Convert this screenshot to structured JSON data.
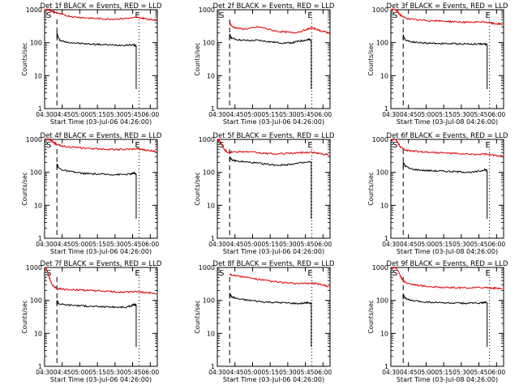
{
  "chart_data": [
    {
      "type": "line",
      "title": "Det 1f BLACK = Events, RED = LLD",
      "xlabel": "Start Time (03-Jul-06 04:26:00)",
      "ylabel": "Counts/sec",
      "x_ticks": [
        "04:30",
        "04:45",
        "05:00",
        "05:15",
        "05:30",
        "05:45",
        "06:00"
      ],
      "x_tick_minutes": [
        4,
        19,
        34,
        49,
        64,
        79,
        94
      ],
      "xlim_minutes": [
        4,
        100
      ],
      "y_ticks": [
        "1",
        "10",
        "100",
        "1000"
      ],
      "ylim": [
        1,
        1000
      ],
      "ylog": true,
      "markers": {
        "S": "S",
        "E": "E"
      },
      "dashed_line_minute": 14.5,
      "dotted_line_minute": 84.5,
      "series": [
        {
          "color": "#000000",
          "x": [
            14.5,
            16,
            18,
            22,
            28,
            34,
            40,
            46,
            52,
            58,
            64,
            70,
            76,
            80,
            82
          ],
          "y": [
            200,
            130,
            115,
            105,
            100,
            95,
            92,
            90,
            88,
            86,
            85,
            84,
            86,
            84,
            80
          ]
        },
        {
          "color": "#e00000",
          "x": [
            4,
            8,
            10,
            12,
            14.5,
            18,
            24,
            30,
            36,
            42,
            48,
            54,
            60,
            66,
            72,
            78,
            84,
            88,
            92,
            96,
            99
          ],
          "y": [
            1000,
            1000,
            900,
            850,
            800,
            720,
            650,
            600,
            580,
            560,
            540,
            530,
            520,
            530,
            540,
            560,
            580,
            550,
            520,
            500,
            480
          ]
        }
      ]
    },
    {
      "type": "line",
      "title": "Det 2f BLACK = Events, RED = LLD",
      "xlabel": "Start Time (03-Jul-06 04:26:00)",
      "ylabel": "Counts/sec",
      "x_ticks": [
        "04:30",
        "04:45",
        "05:00",
        "05:15",
        "05:30",
        "05:45",
        "06:00"
      ],
      "x_tick_minutes": [
        4,
        19,
        34,
        49,
        64,
        79,
        94
      ],
      "xlim_minutes": [
        4,
        100
      ],
      "y_ticks": [
        "1",
        "10",
        "100",
        "1000"
      ],
      "ylim": [
        1,
        1000
      ],
      "ylog": true,
      "markers": {
        "S": "S",
        "E": "E"
      },
      "dashed_line_minute": 14.5,
      "dotted_line_minute": 84.5,
      "series": [
        {
          "color": "#000000",
          "x": [
            14.5,
            16,
            20,
            26,
            32,
            38,
            44,
            50,
            56,
            62,
            68,
            72,
            76,
            80,
            82,
            84
          ],
          "y": [
            180,
            140,
            125,
            118,
            115,
            118,
            112,
            105,
            100,
            98,
            100,
            108,
            115,
            120,
            125,
            120
          ]
        },
        {
          "color": "#e00000",
          "x": [
            14.5,
            16,
            20,
            26,
            32,
            38,
            44,
            50,
            56,
            62,
            68,
            74,
            80,
            84,
            88,
            92,
            96,
            99
          ],
          "y": [
            400,
            320,
            280,
            260,
            270,
            300,
            280,
            240,
            220,
            210,
            200,
            215,
            250,
            280,
            260,
            230,
            210,
            200
          ]
        }
      ]
    },
    {
      "type": "line",
      "title": "Det 3f BLACK = Events, RED = LLD",
      "xlabel": "Start Time (03-Jul-08 04:26:00)",
      "ylabel": "Counts/sec",
      "x_ticks": [
        "04:30",
        "04:45",
        "05:00",
        "05:15",
        "05:30",
        "05:45",
        "06:00"
      ],
      "x_tick_minutes": [
        4,
        19,
        34,
        49,
        64,
        79,
        94
      ],
      "xlim_minutes": [
        4,
        100
      ],
      "y_ticks": [
        "1",
        "10",
        "100",
        "1000"
      ],
      "ylim": [
        1,
        1000
      ],
      "ylog": true,
      "markers": {
        "S": "S",
        "E": "E"
      },
      "dashed_line_minute": 14.5,
      "dotted_line_minute": 88,
      "series": [
        {
          "color": "#000000",
          "x": [
            14.5,
            16,
            20,
            26,
            32,
            38,
            44,
            50,
            56,
            62,
            68,
            74,
            80,
            84,
            86
          ],
          "y": [
            170,
            125,
            110,
            102,
            98,
            96,
            95,
            94,
            93,
            92,
            92,
            91,
            92,
            90,
            88
          ]
        },
        {
          "color": "#e00000",
          "x": [
            4,
            8,
            10,
            12,
            14.5,
            18,
            24,
            30,
            36,
            42,
            48,
            54,
            60,
            66,
            72,
            78,
            84,
            88,
            92,
            96,
            99
          ],
          "y": [
            1000,
            1000,
            850,
            700,
            600,
            540,
            500,
            480,
            470,
            460,
            450,
            440,
            430,
            420,
            410,
            420,
            430,
            400,
            380,
            370,
            360
          ]
        }
      ]
    },
    {
      "type": "line",
      "title": "Det 4f BLACK = Events, RED = LLD",
      "xlabel": "Start Time (03-Jul-06 04:26:00)",
      "ylabel": "Counts/sec",
      "x_ticks": [
        "04:30",
        "04:45",
        "05:00",
        "05:15",
        "05:30",
        "05:45",
        "06:00"
      ],
      "x_tick_minutes": [
        4,
        19,
        34,
        49,
        64,
        79,
        94
      ],
      "xlim_minutes": [
        4,
        100
      ],
      "y_ticks": [
        "1",
        "10",
        "100",
        "1000"
      ],
      "ylim": [
        1,
        1000
      ],
      "ylog": true,
      "markers": {
        "S": "S",
        "E": "E"
      },
      "dashed_line_minute": 14.5,
      "dotted_line_minute": 84.5,
      "series": [
        {
          "color": "#000000",
          "x": [
            14.5,
            16,
            20,
            26,
            32,
            38,
            44,
            50,
            56,
            62,
            68,
            74,
            78,
            80,
            82
          ],
          "y": [
            180,
            135,
            115,
            105,
            98,
            92,
            90,
            88,
            87,
            86,
            86,
            87,
            90,
            95,
            88
          ]
        },
        {
          "color": "#e00000",
          "x": [
            4,
            8,
            10,
            12,
            14.5,
            18,
            24,
            30,
            36,
            42,
            48,
            54,
            60,
            66,
            72,
            78,
            84,
            88,
            92,
            96,
            99
          ],
          "y": [
            1000,
            1000,
            900,
            800,
            700,
            640,
            600,
            570,
            550,
            530,
            520,
            510,
            500,
            495,
            490,
            500,
            520,
            480,
            460,
            450,
            440
          ]
        }
      ]
    },
    {
      "type": "line",
      "title": "Det 5f BLACK = Events, RED = LLD",
      "xlabel": "Start Time (03-Jul-06 04:26:00)",
      "ylabel": "Counts/sec",
      "x_ticks": [
        "04:30",
        "04:45",
        "05:00",
        "05:15",
        "05:30",
        "05:45",
        "06:00"
      ],
      "x_tick_minutes": [
        4,
        19,
        34,
        49,
        64,
        79,
        94
      ],
      "xlim_minutes": [
        4,
        100
      ],
      "y_ticks": [
        "1",
        "10",
        "100",
        "1000"
      ],
      "ylim": [
        1,
        1000
      ],
      "ylog": true,
      "markers": {
        "S": "S",
        "E": "E"
      },
      "dashed_line_minute": 14.5,
      "dotted_line_minute": 84.5,
      "series": [
        {
          "color": "#000000",
          "x": [
            14.5,
            16,
            20,
            26,
            32,
            38,
            44,
            50,
            56,
            62,
            68,
            74,
            80,
            84
          ],
          "y": [
            300,
            240,
            220,
            210,
            200,
            190,
            180,
            170,
            165,
            170,
            180,
            190,
            200,
            210
          ]
        },
        {
          "color": "#e00000",
          "x": [
            4,
            6,
            8,
            10,
            12,
            14.5,
            18,
            24,
            30,
            36,
            42,
            48,
            54,
            60,
            66,
            72,
            78,
            84,
            88,
            92,
            96,
            99
          ],
          "y": [
            1000,
            900,
            700,
            500,
            420,
            400,
            420,
            430,
            420,
            400,
            380,
            370,
            360,
            370,
            380,
            390,
            400,
            410,
            390,
            370,
            350,
            340
          ]
        }
      ]
    },
    {
      "type": "line",
      "title": "Det 6f BLACK = Events, RED = LLD",
      "xlabel": "Start Time (03-Jul-08 04:26:00)",
      "ylabel": "Counts/sec",
      "x_ticks": [
        "04:30",
        "04:45",
        "05:00",
        "05:15",
        "05:30",
        "05:45",
        "06:00"
      ],
      "x_tick_minutes": [
        4,
        19,
        34,
        49,
        64,
        79,
        94
      ],
      "xlim_minutes": [
        4,
        100
      ],
      "y_ticks": [
        "1",
        "10",
        "100",
        "1000"
      ],
      "ylim": [
        1,
        1000
      ],
      "ylog": true,
      "markers": {
        "S": "S",
        "E": "E"
      },
      "dashed_line_minute": 14.5,
      "dotted_line_minute": 88,
      "series": [
        {
          "color": "#000000",
          "x": [
            14.5,
            16,
            20,
            26,
            32,
            38,
            44,
            50,
            56,
            62,
            68,
            74,
            80,
            84,
            86
          ],
          "y": [
            200,
            160,
            130,
            120,
            115,
            112,
            110,
            108,
            106,
            104,
            102,
            100,
            110,
            120,
            115
          ]
        },
        {
          "color": "#e00000",
          "x": [
            4,
            8,
            10,
            12,
            14.5,
            18,
            24,
            30,
            36,
            42,
            48,
            54,
            60,
            66,
            72,
            78,
            84,
            88,
            92,
            96,
            99
          ],
          "y": [
            1000,
            1000,
            800,
            600,
            500,
            460,
            440,
            420,
            410,
            400,
            390,
            380,
            370,
            360,
            350,
            350,
            360,
            340,
            330,
            320,
            310
          ]
        }
      ]
    },
    {
      "type": "line",
      "title": "Det 7f BLACK = Events, RED = LLD",
      "xlabel": "Start Time (03-Jul-06 04:26:00)",
      "ylabel": "Counts/sec",
      "x_ticks": [
        "04:30",
        "04:45",
        "05:00",
        "05:15",
        "05:30",
        "05:45",
        "06:00"
      ],
      "x_tick_minutes": [
        4,
        19,
        34,
        49,
        64,
        79,
        94
      ],
      "xlim_minutes": [
        4,
        100
      ],
      "y_ticks": [
        "1",
        "10",
        "100",
        "1000"
      ],
      "ylim": [
        1,
        1000
      ],
      "ylog": true,
      "markers": {
        "S": "S",
        "E": "E"
      },
      "dashed_line_minute": 14.5,
      "dotted_line_minute": 84.5,
      "series": [
        {
          "color": "#000000",
          "x": [
            14.5,
            16,
            20,
            26,
            32,
            38,
            44,
            50,
            56,
            62,
            68,
            74,
            78,
            80,
            82
          ],
          "y": [
            100,
            80,
            75,
            72,
            70,
            68,
            66,
            65,
            64,
            63,
            62,
            62,
            70,
            75,
            72
          ]
        },
        {
          "color": "#e00000",
          "x": [
            4,
            6,
            8,
            10,
            12,
            14.5,
            18,
            24,
            30,
            36,
            42,
            48,
            54,
            60,
            66,
            72,
            78,
            84,
            88,
            92,
            96,
            99
          ],
          "y": [
            1000,
            800,
            500,
            320,
            260,
            230,
            220,
            215,
            210,
            205,
            200,
            195,
            190,
            185,
            180,
            178,
            180,
            185,
            175,
            170,
            165,
            160
          ]
        }
      ]
    },
    {
      "type": "line",
      "title": "Det 8f BLACK = Events, RED = LLD",
      "xlabel": "Start Time (03-Jul-06 04:26:00)",
      "ylabel": "Counts/sec",
      "x_ticks": [
        "04:30",
        "04:45",
        "05:00",
        "05:15",
        "05:30",
        "05:45",
        "06:00"
      ],
      "x_tick_minutes": [
        4,
        19,
        34,
        49,
        64,
        79,
        94
      ],
      "xlim_minutes": [
        4,
        100
      ],
      "y_ticks": [
        "1",
        "10",
        "100",
        "1000"
      ],
      "ylim": [
        1,
        1000
      ],
      "ylog": true,
      "markers": {
        "S": "S",
        "E": "E"
      },
      "dashed_line_minute": 14.5,
      "dotted_line_minute": 84.5,
      "series": [
        {
          "color": "#000000",
          "x": [
            14.5,
            16,
            20,
            26,
            32,
            38,
            44,
            50,
            56,
            62,
            68,
            74,
            80,
            84
          ],
          "y": [
            160,
            130,
            115,
            105,
            100,
            95,
            90,
            88,
            86,
            84,
            82,
            80,
            85,
            82
          ]
        },
        {
          "color": "#e00000",
          "x": [
            14.5,
            16,
            20,
            26,
            32,
            38,
            44,
            50,
            56,
            62,
            68,
            74,
            80,
            84,
            88,
            92,
            96,
            99
          ],
          "y": [
            650,
            600,
            560,
            520,
            480,
            440,
            410,
            380,
            360,
            340,
            330,
            320,
            330,
            340,
            320,
            300,
            280,
            260
          ]
        }
      ]
    },
    {
      "type": "line",
      "title": "Det 9f BLACK = Events, RED = LLD",
      "xlabel": "Start Time (03-Jul-08 04:26:00)",
      "ylabel": "Counts/sec",
      "x_ticks": [
        "04:30",
        "04:45",
        "05:00",
        "05:15",
        "05:30",
        "05:45",
        "06:00"
      ],
      "x_tick_minutes": [
        4,
        19,
        34,
        49,
        64,
        79,
        94
      ],
      "xlim_minutes": [
        4,
        100
      ],
      "y_ticks": [
        "1",
        "10",
        "100",
        "1000"
      ],
      "ylim": [
        1,
        1000
      ],
      "ylog": true,
      "markers": {
        "S": "S",
        "E": "E"
      },
      "dashed_line_minute": 14.5,
      "dotted_line_minute": 88,
      "series": [
        {
          "color": "#000000",
          "x": [
            14.5,
            16,
            20,
            26,
            32,
            38,
            44,
            50,
            56,
            62,
            68,
            74,
            80,
            84,
            86
          ],
          "y": [
            150,
            120,
            100,
            95,
            90,
            88,
            86,
            84,
            83,
            82,
            82,
            82,
            84,
            86,
            84
          ]
        },
        {
          "color": "#e00000",
          "x": [
            4,
            8,
            10,
            12,
            14.5,
            18,
            24,
            30,
            36,
            42,
            48,
            54,
            60,
            66,
            72,
            78,
            84,
            88,
            92,
            96,
            99
          ],
          "y": [
            1000,
            1000,
            800,
            550,
            400,
            330,
            300,
            280,
            265,
            255,
            250,
            245,
            240,
            240,
            240,
            245,
            250,
            240,
            235,
            230,
            225
          ]
        }
      ]
    }
  ]
}
